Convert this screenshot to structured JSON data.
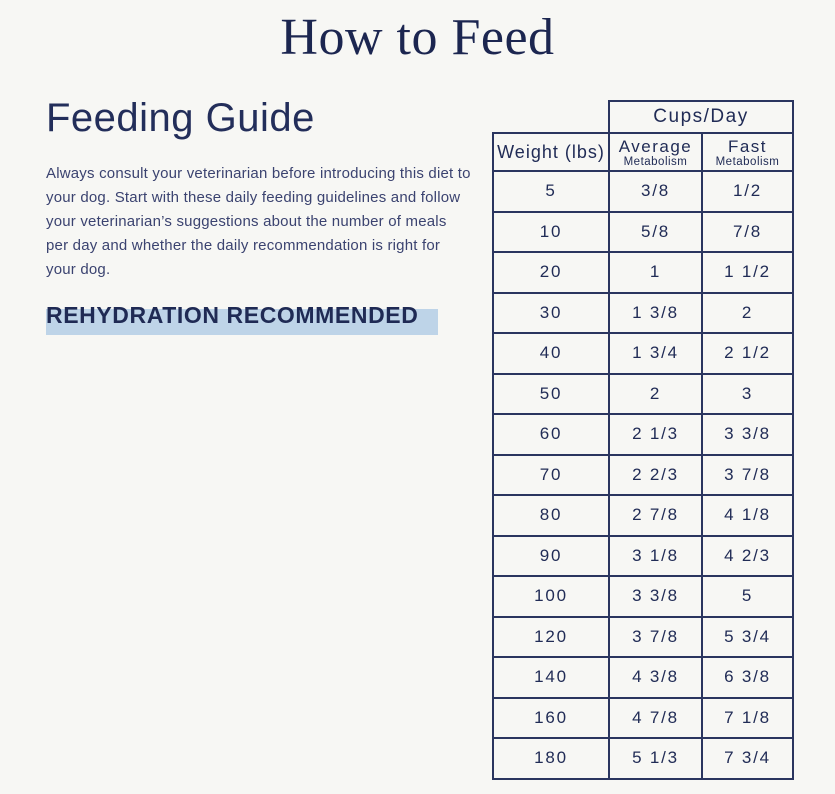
{
  "page": {
    "title": "How to Feed",
    "background_color": "#f7f7f4",
    "navy_color": "#212c56",
    "highlight_color": "#bed4e8"
  },
  "feeding_guide": {
    "heading": "Feeding Guide",
    "paragraph": "Always consult your veterinarian before introducing this diet to your dog. Start with these daily feeding guidelines and follow your veterinarian’s suggestions about the number of meals per day and whether the daily recommendation is right for your dog.",
    "rehydration_note": "REHYDRATION RECOMMENDED"
  },
  "table": {
    "cups_day_header": "Cups/Day",
    "weight_header": "Weight (lbs)",
    "columns": [
      {
        "line1": "Average",
        "line2": "Metabolism"
      },
      {
        "line1": "Fast",
        "line2": "Metabolism"
      }
    ],
    "rows": [
      [
        "5",
        "3/8",
        "1/2"
      ],
      [
        "10",
        "5/8",
        "7/8"
      ],
      [
        "20",
        "1",
        "1 1/2"
      ],
      [
        "30",
        "1 3/8",
        "2"
      ],
      [
        "40",
        "1 3/4",
        "2 1/2"
      ],
      [
        "50",
        "2",
        "3"
      ],
      [
        "60",
        "2 1/3",
        "3 3/8"
      ],
      [
        "70",
        "2 2/3",
        "3 7/8"
      ],
      [
        "80",
        "2 7/8",
        "4 1/8"
      ],
      [
        "90",
        "3 1/8",
        "4 2/3"
      ],
      [
        "100",
        "3 3/8",
        "5"
      ],
      [
        "120",
        "3 7/8",
        "5 3/4"
      ],
      [
        "140",
        "4 3/8",
        "6 3/8"
      ],
      [
        "160",
        "4 7/8",
        "7 1/8"
      ],
      [
        "180",
        "5 1/3",
        "7 3/4"
      ]
    ]
  }
}
